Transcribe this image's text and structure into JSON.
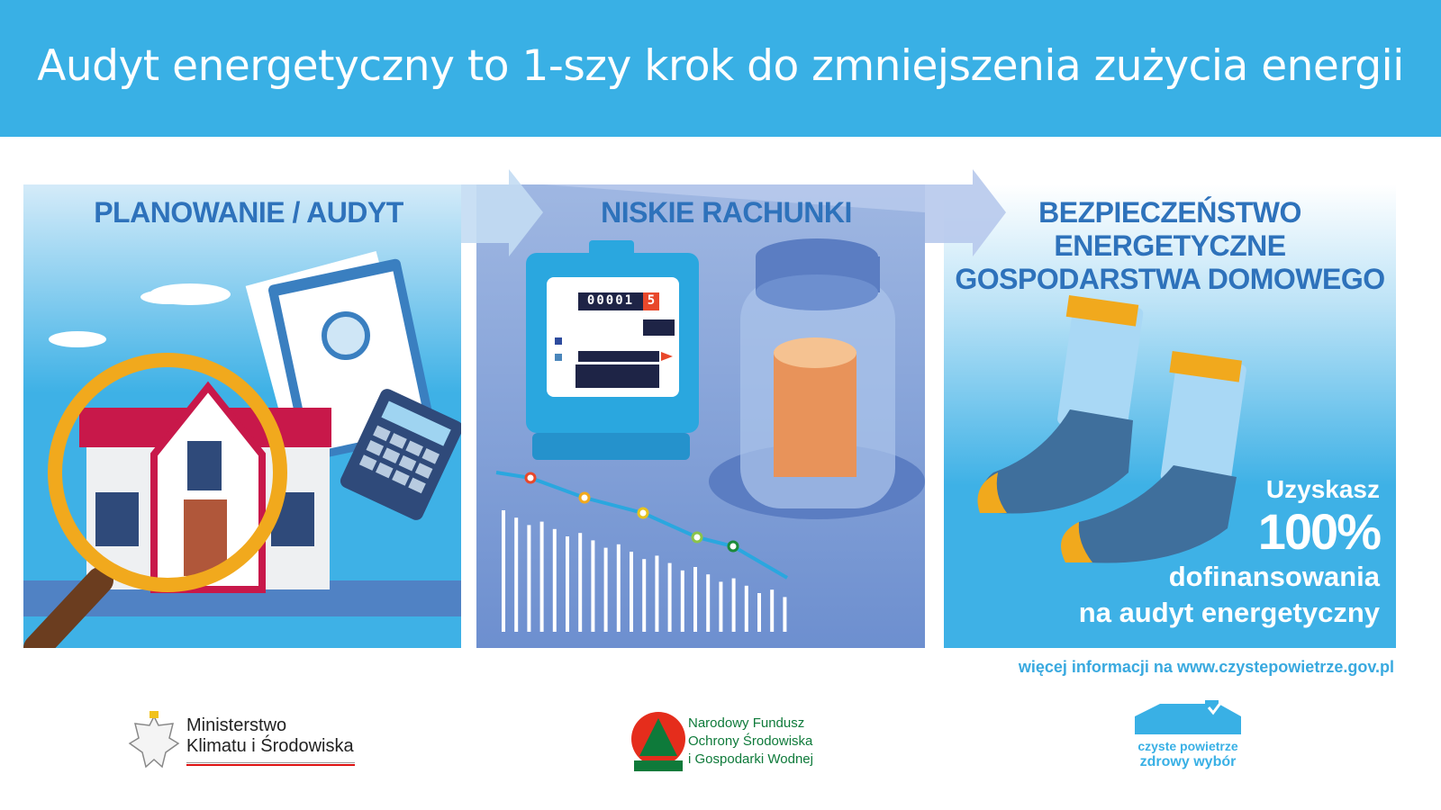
{
  "header": {
    "title": "Audyt energetyczny to 1-szy krok do zmniejszenia zużycia energii"
  },
  "panels": [
    {
      "title": "PLANOWANIE / AUDYT"
    },
    {
      "title": "NISKIE RACHUNKI",
      "meter_digits": "00001",
      "meter_last_digit": "5"
    },
    {
      "title_lines": [
        "BEZPIECZEŃSTWO",
        "ENERGETYCZNE",
        "GOSPODARSTWA DOMOWEGO"
      ],
      "award": {
        "line1": "Uzyskasz",
        "line2": "100%",
        "line3": "dofinansowania",
        "line4": "na audyt energetyczny"
      }
    }
  ],
  "footer": {
    "more_info": "więcej informacji na www.czystepowietrze.gov.pl",
    "logos": [
      {
        "lines": [
          "Ministerstwo",
          "Klimatu i Środowiska"
        ]
      },
      {
        "lines": [
          "Narodowy Fundusz",
          "Ochrony Środowiska",
          "i Gospodarki Wodnej"
        ]
      },
      {
        "lines": [
          "czyste powietrze",
          "zdrowy wybór"
        ]
      }
    ]
  },
  "colors": {
    "header": "#39b0e5",
    "panel_title": "#2e72bb",
    "accent_red": "#c8184a",
    "logo_green": "#0e7a3a",
    "logo_red": "#e52d1c"
  }
}
